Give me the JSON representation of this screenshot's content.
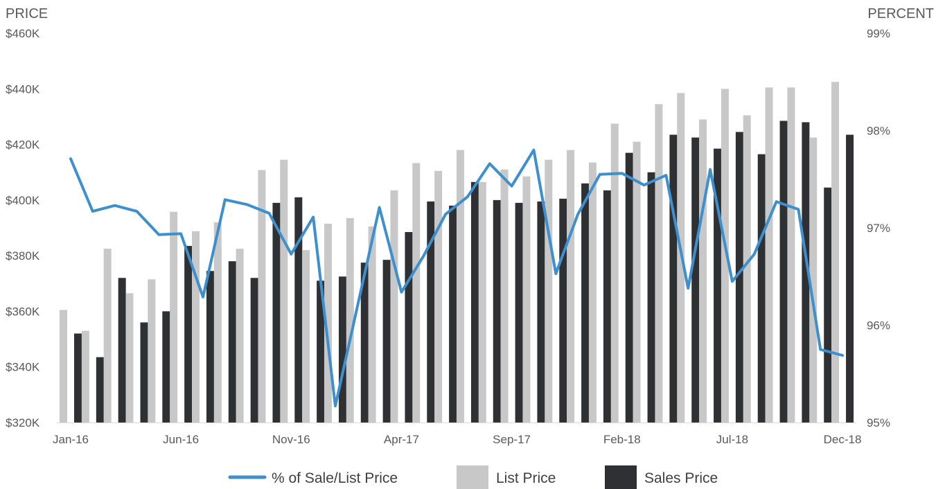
{
  "chart_data": {
    "type": "bar",
    "y_left_title": "PRICE",
    "y_right_title": "PERCENT",
    "y_left_ticks": [
      "$460K",
      "$440K",
      "$420K",
      "$400K",
      "$380K",
      "$360K",
      "$340K",
      "$320K"
    ],
    "y_right_ticks": [
      "99%",
      "98%",
      "97%",
      "96%",
      "95%"
    ],
    "ylim_left": [
      320000,
      460000
    ],
    "ylim_right": [
      95,
      99
    ],
    "x_tick_labels": [
      {
        "index": 0,
        "label": "Jan-16"
      },
      {
        "index": 5,
        "label": "Jun-16"
      },
      {
        "index": 10,
        "label": "Nov-16"
      },
      {
        "index": 15,
        "label": "Apr-17"
      },
      {
        "index": 20,
        "label": "Sep-17"
      },
      {
        "index": 25,
        "label": "Feb-18"
      },
      {
        "index": 30,
        "label": "Jul-18"
      },
      {
        "index": 35,
        "label": "Dec-18"
      }
    ],
    "categories": [
      "Jan-16",
      "Feb-16",
      "Mar-16",
      "Apr-16",
      "May-16",
      "Jun-16",
      "Jul-16",
      "Aug-16",
      "Sep-16",
      "Oct-16",
      "Nov-16",
      "Dec-16",
      "Jan-17",
      "Feb-17",
      "Mar-17",
      "Apr-17",
      "May-17",
      "Jun-17",
      "Jul-17",
      "Aug-17",
      "Sep-17",
      "Oct-17",
      "Nov-17",
      "Dec-17",
      "Jan-18",
      "Feb-18",
      "Mar-18",
      "Apr-18",
      "May-18",
      "Jun-18",
      "Jul-18",
      "Aug-18",
      "Sep-18",
      "Oct-18",
      "Nov-18",
      "Dec-18"
    ],
    "series": [
      {
        "name": "List Price",
        "kind": "bar",
        "color": "#c8c8c8",
        "values": [
          360500,
          353000,
          382500,
          366500,
          371500,
          395800,
          388800,
          392000,
          382500,
          410800,
          414500,
          382000,
          391500,
          393500,
          390500,
          403500,
          413300,
          410500,
          418000,
          406500,
          411000,
          408500,
          414500,
          418000,
          413500,
          427500,
          421000,
          434500,
          438500,
          429000,
          440000,
          430500,
          440500,
          440500,
          422500,
          442500
        ]
      },
      {
        "name": "Sales Price",
        "kind": "bar",
        "color": "#2e3034",
        "values": [
          352000,
          343500,
          372000,
          356000,
          360000,
          383500,
          374500,
          378000,
          372000,
          399000,
          401000,
          371000,
          372500,
          377500,
          378500,
          388500,
          399500,
          398000,
          406500,
          400000,
          399000,
          399500,
          400500,
          406000,
          403500,
          417000,
          410000,
          423500,
          422500,
          418500,
          424500,
          416500,
          428500,
          428000,
          404500,
          423500
        ]
      },
      {
        "name": "% of Sale/List Price",
        "kind": "line",
        "axis": "right",
        "color": "#3d8fcd",
        "values": [
          97.71,
          97.17,
          97.23,
          97.17,
          96.93,
          96.94,
          96.29,
          97.29,
          97.24,
          97.15,
          96.73,
          97.11,
          95.17,
          96.19,
          97.21,
          96.34,
          96.71,
          97.14,
          97.32,
          97.66,
          97.43,
          97.8,
          96.53,
          97.14,
          97.55,
          97.56,
          97.44,
          97.54,
          96.38,
          97.6,
          96.45,
          96.73,
          97.27,
          97.19,
          95.75,
          95.69
        ]
      }
    ],
    "legend": {
      "placement": "bottom",
      "items": [
        {
          "label": "% of Sale/List Price",
          "swatch": "line",
          "color": "#3d8fcd"
        },
        {
          "label": "List Price",
          "swatch": "box",
          "color": "#c8c8c8"
        },
        {
          "label": "Sales Price",
          "swatch": "box",
          "color": "#2e3034"
        }
      ]
    },
    "grid": false
  }
}
